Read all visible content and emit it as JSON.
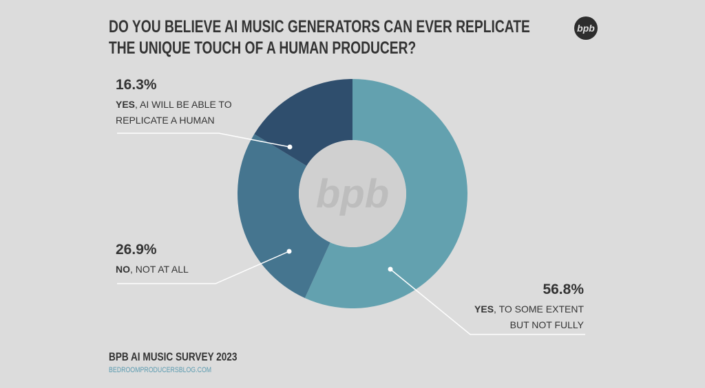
{
  "header": {
    "title": "DO YOU BELIEVE AI MUSIC GENERATORS CAN EVER REPLICATE THE UNIQUE TOUCH OF A HUMAN PRODUCER?",
    "logo": "bpb"
  },
  "chart_data": {
    "type": "donut",
    "categories": [
      "YES, TO SOME EXTENT BUT NOT FULLY",
      "NO, NOT AT ALL",
      "YES, AI WILL BE ABLE TO REPLICATE A HUMAN"
    ],
    "values": [
      56.8,
      26.9,
      16.3
    ],
    "value_labels": [
      "56.8%",
      "26.9%",
      "16.3%"
    ],
    "colors": [
      "#63a1af",
      "#45758f",
      "#2f4e6d"
    ],
    "center_label": "bpb"
  },
  "footer": {
    "title": "BPB AI MUSIC SURVEY 2023",
    "url": "BEDROOMPRODUCERSBLOG.COM"
  }
}
